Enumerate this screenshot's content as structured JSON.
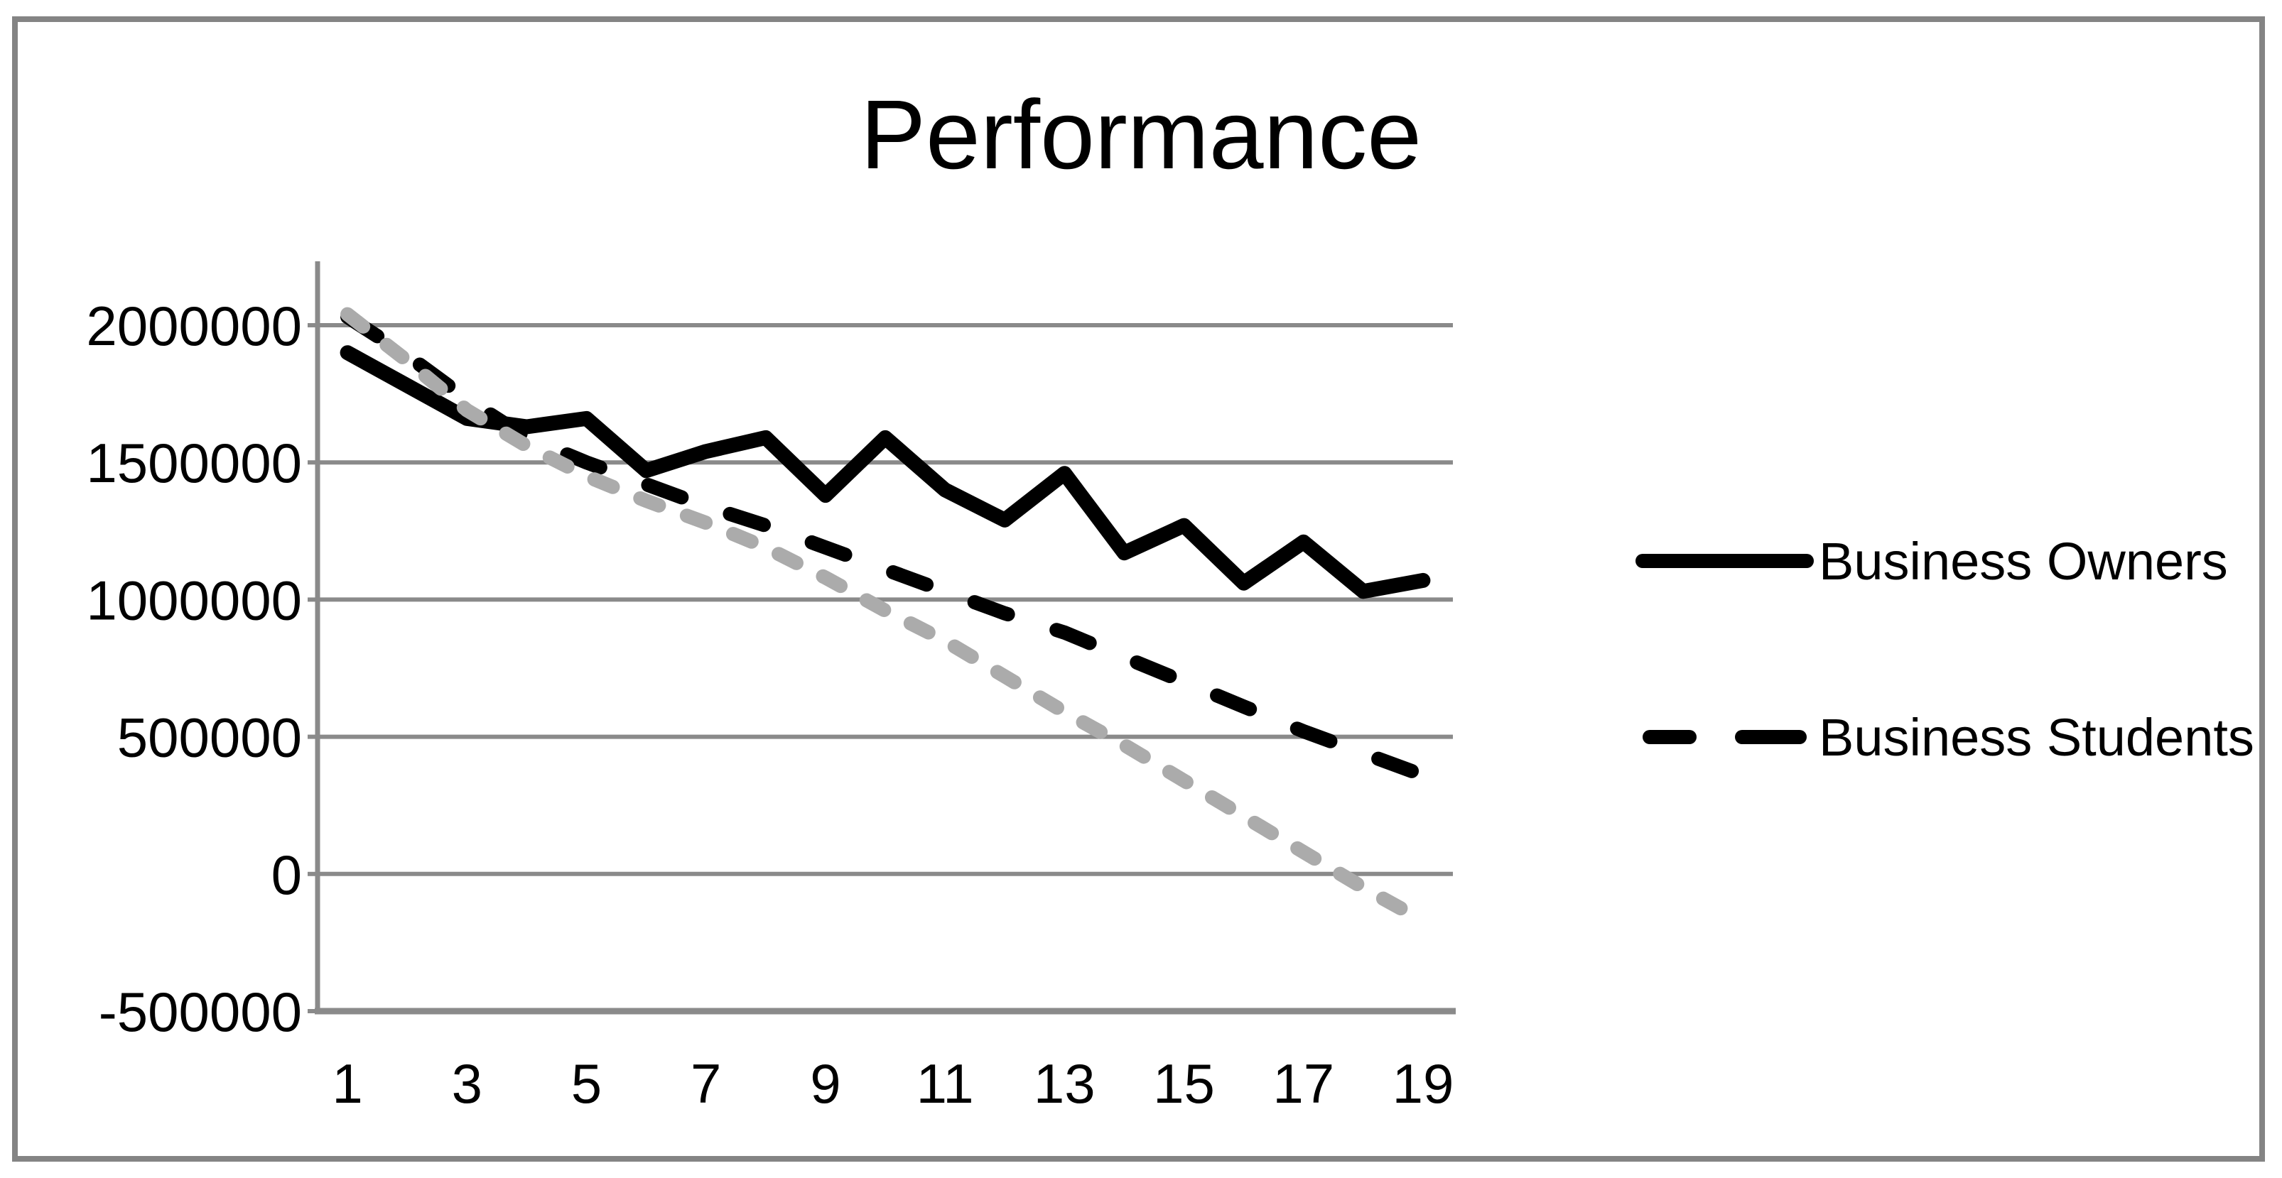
{
  "title": "Performance",
  "colors": {
    "background": "#FFFFFF",
    "border": "#848484",
    "axis": "#8A8A8A",
    "gridline": "#8A8A8A",
    "text": "#000000",
    "series_black": "#000000",
    "series_gray": "#ABABAB"
  },
  "chart_data": {
    "type": "line",
    "title": "Performance",
    "xlabel": "",
    "ylabel": "",
    "x": [
      1,
      2,
      3,
      4,
      5,
      6,
      7,
      8,
      9,
      10,
      11,
      12,
      13,
      14,
      15,
      16,
      17,
      18,
      19
    ],
    "x_ticks": [
      1,
      3,
      5,
      7,
      9,
      11,
      13,
      15,
      17,
      19
    ],
    "x_tick_labels": [
      "1",
      "3",
      "5",
      "7",
      "9",
      "11",
      "13",
      "15",
      "17",
      "19"
    ],
    "y_ticks": [
      2000000,
      1500000,
      1000000,
      500000,
      0,
      -500000
    ],
    "y_tick_labels": [
      "2000000",
      "1500000",
      "1000000",
      "500000",
      "0",
      "-500000"
    ],
    "ylim": [
      -500000,
      2233000
    ],
    "grid": true,
    "legend_position": "center-right",
    "series": [
      {
        "name": "Business Owners",
        "color": "#000000",
        "line_style": "solid",
        "in_legend": true,
        "values": [
          1900000,
          1780000,
          1660000,
          1630000,
          1660000,
          1470000,
          1540000,
          1590000,
          1380000,
          1590000,
          1400000,
          1290000,
          1460000,
          1170000,
          1270000,
          1060000,
          1210000,
          1030000,
          1070000
        ]
      },
      {
        "name": "Business Students",
        "color": "#000000",
        "line_style": "dashed",
        "in_legend": true,
        "values": [
          2030000,
          1890000,
          1730000,
          1590000,
          1500000,
          1420000,
          1340000,
          1270000,
          1190000,
          1110000,
          1030000,
          950000,
          880000,
          790000,
          700000,
          610000,
          520000,
          440000,
          360000
        ]
      },
      {
        "name": "",
        "color": "#ABABAB",
        "line_style": "dashed",
        "in_legend": false,
        "values": [
          2040000,
          1870000,
          1690000,
          1560000,
          1450000,
          1360000,
          1280000,
          1190000,
          1080000,
          960000,
          850000,
          720000,
          590000,
          470000,
          340000,
          210000,
          80000,
          -50000,
          -170000
        ]
      }
    ]
  }
}
